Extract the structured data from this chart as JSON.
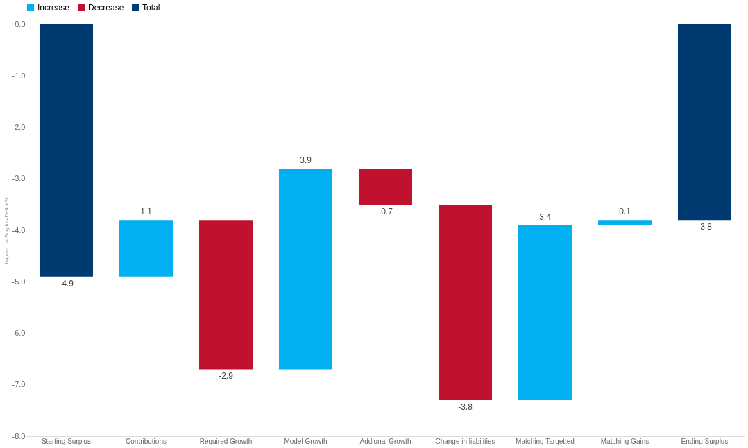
{
  "chart_data": {
    "type": "bar",
    "ylabel": "Impact on Surplus/Deficit%",
    "categories": [
      "Starting Surplus",
      "Contributions",
      "Required Growth",
      "Model Growth",
      "Addional Growth",
      "Change in liabilities",
      "Matching Targetted",
      "Matching Gains",
      "Ending Surplus"
    ],
    "series": [
      {
        "name": "Increase",
        "color": "#00b0f0",
        "base": [
          null,
          -4.9,
          null,
          -6.7,
          null,
          null,
          -7.3,
          -3.9,
          null
        ],
        "values": [
          null,
          1.1,
          null,
          3.9,
          null,
          null,
          3.4,
          0.1,
          null
        ]
      },
      {
        "name": "Decrease",
        "color": "#c0122f",
        "base": [
          null,
          null,
          -3.8,
          null,
          -2.8,
          -3.5,
          null,
          null,
          null
        ],
        "values": [
          null,
          null,
          -2.9,
          null,
          -0.7,
          -3.8,
          null,
          null,
          null
        ]
      },
      {
        "name": "Total",
        "color": "#003a70",
        "base": [
          0,
          null,
          null,
          null,
          null,
          null,
          null,
          null,
          0
        ],
        "values": [
          -4.9,
          null,
          null,
          null,
          null,
          null,
          null,
          null,
          -3.8
        ]
      }
    ],
    "ylim": [
      -8,
      0
    ],
    "yticks": [
      {
        "value": 0,
        "label": "0.0"
      },
      {
        "value": -1,
        "label": "-1.0"
      },
      {
        "value": -2,
        "label": "-2.0"
      },
      {
        "value": -3,
        "label": "-3.0"
      },
      {
        "value": -4,
        "label": "-4.0"
      },
      {
        "value": -5,
        "label": "-5.0"
      },
      {
        "value": -6,
        "label": "-6.0"
      },
      {
        "value": -7,
        "label": "-7.0"
      },
      {
        "value": -8,
        "label": "-8.0"
      }
    ],
    "data_labels": true,
    "legend": "top",
    "grid": false
  }
}
